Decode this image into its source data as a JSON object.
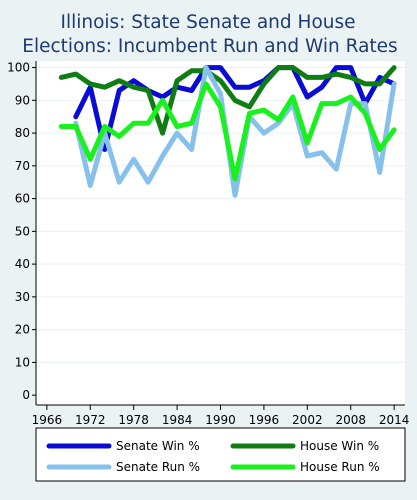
{
  "chart_data": {
    "type": "line",
    "title_lines": [
      "Illinois: State Senate and House",
      "Elections: Incumbent Run and Win Rates"
    ],
    "xlabel": "",
    "ylabel": "",
    "x_ticks": [
      "1966",
      "1972",
      "1978",
      "1984",
      "1990",
      "1996",
      "2002",
      "2008",
      "2014"
    ],
    "y_ticks": [
      "0",
      "10",
      "20",
      "30",
      "40",
      "50",
      "60",
      "70",
      "80",
      "90",
      "100"
    ],
    "xlim": [
      1964.5,
      2015.5
    ],
    "ylim": [
      -3,
      102
    ],
    "grid": true,
    "legend_position": "bottom",
    "series": [
      {
        "name": "Senate Win %",
        "color": "#0b0bd6",
        "points": [
          [
            1970,
            85
          ],
          [
            1972,
            94
          ],
          [
            1974,
            75
          ],
          [
            1976,
            93
          ],
          [
            1978,
            96
          ],
          [
            1980,
            93
          ],
          [
            1982,
            91
          ],
          [
            1984,
            94
          ],
          [
            1986,
            93
          ],
          [
            1988,
            100
          ],
          [
            1990,
            100
          ],
          [
            1992,
            94
          ],
          [
            1994,
            94
          ],
          [
            1996,
            96
          ],
          [
            1998,
            100
          ],
          [
            2000,
            100
          ],
          [
            2002,
            91
          ],
          [
            2004,
            94
          ],
          [
            2006,
            100
          ],
          [
            2008,
            100
          ],
          [
            2010,
            89
          ],
          [
            2012,
            97
          ],
          [
            2014,
            95
          ]
        ]
      },
      {
        "name": "House Win %",
        "color": "#0f7d14",
        "points": [
          [
            1968,
            97
          ],
          [
            1970,
            98
          ],
          [
            1972,
            95
          ],
          [
            1974,
            94
          ],
          [
            1976,
            96
          ],
          [
            1978,
            94
          ],
          [
            1980,
            93
          ],
          [
            1982,
            80
          ],
          [
            1984,
            96
          ],
          [
            1986,
            99
          ],
          [
            1988,
            99
          ],
          [
            1990,
            96
          ],
          [
            1992,
            90
          ],
          [
            1994,
            88
          ],
          [
            1996,
            95
          ],
          [
            1998,
            100
          ],
          [
            2000,
            100
          ],
          [
            2002,
            97
          ],
          [
            2004,
            97
          ],
          [
            2006,
            98
          ],
          [
            2008,
            97
          ],
          [
            2010,
            95
          ],
          [
            2012,
            95
          ],
          [
            2014,
            100
          ]
        ]
      },
      {
        "name": "Senate Run %",
        "color": "#86c1ec",
        "points": [
          [
            1970,
            83
          ],
          [
            1972,
            64
          ],
          [
            1974,
            80
          ],
          [
            1976,
            65
          ],
          [
            1978,
            72
          ],
          [
            1980,
            65
          ],
          [
            1982,
            73
          ],
          [
            1984,
            80
          ],
          [
            1986,
            75
          ],
          [
            1988,
            100
          ],
          [
            1990,
            92
          ],
          [
            1992,
            61
          ],
          [
            1994,
            85
          ],
          [
            1996,
            80
          ],
          [
            1998,
            83
          ],
          [
            2000,
            89
          ],
          [
            2002,
            73
          ],
          [
            2004,
            74
          ],
          [
            2006,
            69
          ],
          [
            2008,
            89
          ],
          [
            2010,
            89
          ],
          [
            2012,
            68
          ],
          [
            2014,
            95
          ]
        ]
      },
      {
        "name": "House Run %",
        "color": "#19f11e",
        "points": [
          [
            1968,
            82
          ],
          [
            1970,
            82
          ],
          [
            1972,
            72
          ],
          [
            1974,
            82
          ],
          [
            1976,
            79
          ],
          [
            1978,
            83
          ],
          [
            1980,
            83
          ],
          [
            1982,
            90
          ],
          [
            1984,
            82
          ],
          [
            1986,
            83
          ],
          [
            1988,
            95
          ],
          [
            1990,
            88
          ],
          [
            1992,
            66
          ],
          [
            1994,
            86
          ],
          [
            1996,
            87
          ],
          [
            1998,
            84
          ],
          [
            2000,
            91
          ],
          [
            2002,
            77
          ],
          [
            2004,
            89
          ],
          [
            2006,
            89
          ],
          [
            2008,
            91
          ],
          [
            2010,
            86
          ],
          [
            2012,
            75
          ],
          [
            2014,
            81
          ]
        ]
      }
    ],
    "legend_order": [
      "Senate Win %",
      "House Win %",
      "Senate Run %",
      "House Run %"
    ],
    "colors": {
      "background": "#eaf2f3",
      "plot_background": "#ffffff",
      "title": "#1e3b6e",
      "grid": "#eaf2f3",
      "axis": "#000000"
    }
  }
}
